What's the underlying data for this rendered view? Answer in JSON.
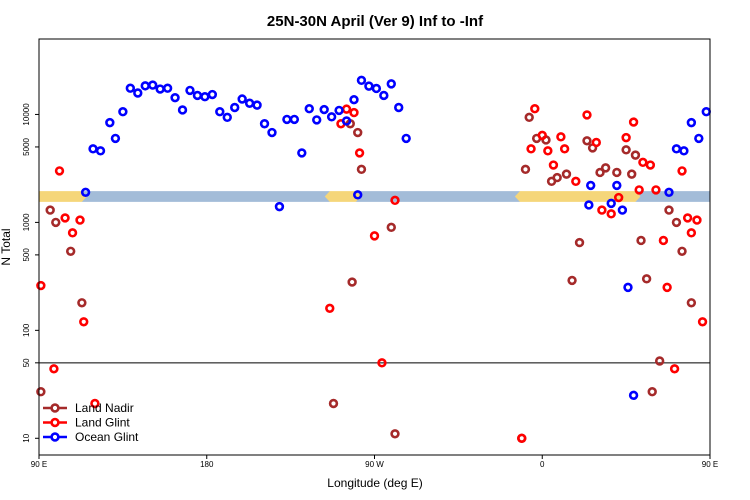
{
  "chart_data": {
    "type": "scatter",
    "title": "25N-30N April (Ver 9)   Inf to -Inf",
    "xlabel": "Longitude (deg E)",
    "ylabel": "N Total",
    "x_axis": {
      "range": [
        90,
        450
      ],
      "ticks": [
        {
          "value": 90,
          "label": "90 E"
        },
        {
          "value": 180,
          "label": "180"
        },
        {
          "value": 270,
          "label": "90 W"
        },
        {
          "value": 360,
          "label": "0"
        },
        {
          "value": 450,
          "label": "90 E"
        }
      ]
    },
    "y_axis": {
      "scale": "log",
      "range": [
        7,
        50000
      ],
      "ticks": [
        {
          "value": 10,
          "label": "10"
        },
        {
          "value": 50,
          "label": "50"
        },
        {
          "value": 100,
          "label": "100"
        },
        {
          "value": 500,
          "label": "500"
        },
        {
          "value": 1000,
          "label": "1000"
        },
        {
          "value": 5000,
          "label": "5000"
        },
        {
          "value": 10000,
          "label": "10000"
        }
      ]
    },
    "reference_line": {
      "y": 50,
      "color": "#000000"
    },
    "land_band": {
      "y_low": 1550,
      "y_high": 1950,
      "land_color": "#f5d67a",
      "ocean_color": "#a3bcd8",
      "segments": [
        {
          "type": "land",
          "x0": 90,
          "x1": 113
        },
        {
          "type": "ocean",
          "x0": 113,
          "x1": 246
        },
        {
          "type": "land",
          "x0": 246,
          "x1": 260
        },
        {
          "type": "ocean",
          "x0": 260,
          "x1": 348
        },
        {
          "type": "land",
          "x0": 348,
          "x1": 410
        },
        {
          "type": "ocean",
          "x0": 410,
          "x1": 450
        }
      ]
    },
    "legend_position": "bottom-left",
    "series": [
      {
        "name": "Land Nadir",
        "color": "#a52a2a",
        "points": [
          [
            91,
            27
          ],
          [
            96,
            1300
          ],
          [
            99,
            1000
          ],
          [
            107,
            540
          ],
          [
            113,
            180
          ],
          [
            248,
            21
          ],
          [
            257,
            8200
          ],
          [
            261,
            6800
          ],
          [
            263,
            3100
          ],
          [
            258,
            280
          ],
          [
            279,
            900
          ],
          [
            281,
            11
          ],
          [
            349,
            10
          ],
          [
            351,
            3100
          ],
          [
            353,
            9400
          ],
          [
            357,
            6000
          ],
          [
            362,
            5800
          ],
          [
            365,
            2400
          ],
          [
            368,
            2600
          ],
          [
            373,
            2800
          ],
          [
            376,
            290
          ],
          [
            380,
            650
          ],
          [
            384,
            5700
          ],
          [
            387,
            4900
          ],
          [
            391,
            2900
          ],
          [
            394,
            3200
          ],
          [
            400,
            2900
          ],
          [
            405,
            4700
          ],
          [
            408,
            2800
          ],
          [
            410,
            4200
          ],
          [
            413,
            680
          ],
          [
            416,
            300
          ],
          [
            419,
            27
          ],
          [
            423,
            52
          ],
          [
            428,
            1300
          ],
          [
            432,
            1000
          ],
          [
            435,
            540
          ],
          [
            440,
            180
          ]
        ]
      },
      {
        "name": "Land Glint",
        "color": "#ff0000",
        "points": [
          [
            91,
            260
          ],
          [
            98,
            44
          ],
          [
            101,
            3000
          ],
          [
            104,
            1100
          ],
          [
            108,
            800
          ],
          [
            112,
            1050
          ],
          [
            114,
            120
          ],
          [
            120,
            21
          ],
          [
            246,
            160
          ],
          [
            252,
            8200
          ],
          [
            255,
            11200
          ],
          [
            259,
            10400
          ],
          [
            262,
            4400
          ],
          [
            270,
            750
          ],
          [
            274,
            50
          ],
          [
            281,
            1600
          ],
          [
            349,
            10
          ],
          [
            354,
            4800
          ],
          [
            356,
            11300
          ],
          [
            360,
            6400
          ],
          [
            363,
            4600
          ],
          [
            366,
            3400
          ],
          [
            370,
            6200
          ],
          [
            372,
            4800
          ],
          [
            378,
            2400
          ],
          [
            384,
            9900
          ],
          [
            389,
            5500
          ],
          [
            392,
            1300
          ],
          [
            397,
            1200
          ],
          [
            401,
            1700
          ],
          [
            405,
            6100
          ],
          [
            409,
            8500
          ],
          [
            412,
            2000
          ],
          [
            414,
            3600
          ],
          [
            418,
            3400
          ],
          [
            421,
            2000
          ],
          [
            425,
            680
          ],
          [
            427,
            250
          ],
          [
            431,
            44
          ],
          [
            435,
            3000
          ],
          [
            438,
            1100
          ],
          [
            440,
            800
          ],
          [
            443,
            1050
          ],
          [
            446,
            120
          ],
          [
            452,
            21
          ]
        ]
      },
      {
        "name": "Ocean Glint",
        "color": "#0000ff",
        "points": [
          [
            115,
            1900
          ],
          [
            119,
            4800
          ],
          [
            123,
            4600
          ],
          [
            128,
            8400
          ],
          [
            131,
            6000
          ],
          [
            135,
            10600
          ],
          [
            139,
            17500
          ],
          [
            143,
            15800
          ],
          [
            147,
            18400
          ],
          [
            151,
            18700
          ],
          [
            155,
            17200
          ],
          [
            159,
            17500
          ],
          [
            163,
            14300
          ],
          [
            167,
            11000
          ],
          [
            171,
            16700
          ],
          [
            175,
            15000
          ],
          [
            179,
            14600
          ],
          [
            183,
            15300
          ],
          [
            187,
            10600
          ],
          [
            191,
            9400
          ],
          [
            195,
            11600
          ],
          [
            199,
            13900
          ],
          [
            203,
            12700
          ],
          [
            207,
            12200
          ],
          [
            211,
            8200
          ],
          [
            215,
            6800
          ],
          [
            219,
            1400
          ],
          [
            223,
            9000
          ],
          [
            227,
            9000
          ],
          [
            231,
            4400
          ],
          [
            235,
            11300
          ],
          [
            239,
            8900
          ],
          [
            243,
            11100
          ],
          [
            247,
            9500
          ],
          [
            251,
            10900
          ],
          [
            255,
            8700
          ],
          [
            259,
            13700
          ],
          [
            263,
            20700
          ],
          [
            267,
            18300
          ],
          [
            271,
            17400
          ],
          [
            275,
            15000
          ],
          [
            279,
            19200
          ],
          [
            283,
            11600
          ],
          [
            287,
            6000
          ],
          [
            261,
            1800
          ],
          [
            386,
            2200
          ],
          [
            385,
            1450
          ],
          [
            397,
            1500
          ],
          [
            400,
            2200
          ],
          [
            403,
            1300
          ],
          [
            406,
            250
          ],
          [
            409,
            25
          ],
          [
            428,
            1900
          ],
          [
            432,
            4800
          ],
          [
            436,
            4600
          ],
          [
            440,
            8400
          ],
          [
            444,
            6000
          ],
          [
            448,
            10600
          ],
          [
            452,
            17500
          ]
        ]
      }
    ]
  }
}
